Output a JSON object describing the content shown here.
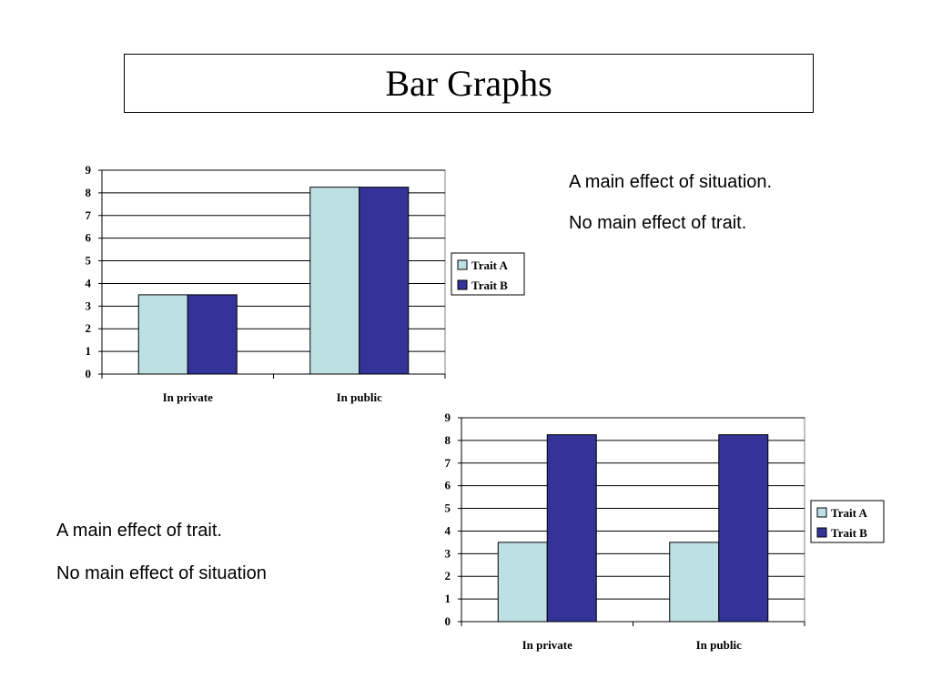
{
  "slide": {
    "title": "Bar Graphs",
    "caption_top_1": "A main effect of situation.",
    "caption_top_2": "No main effect of trait.",
    "caption_bottom_1": "A main effect of trait.",
    "caption_bottom_2": "No main effect of situation"
  },
  "colors": {
    "trait_a": "#bde0e3",
    "trait_b": "#333399"
  },
  "chart_data": [
    {
      "type": "bar",
      "categories": [
        "In private",
        "In public"
      ],
      "series": [
        {
          "name": "Trait A",
          "values": [
            3.5,
            8.25
          ]
        },
        {
          "name": "Trait B",
          "values": [
            3.5,
            8.25
          ]
        }
      ],
      "ylim": [
        0,
        9
      ],
      "yticks": [
        0,
        1,
        2,
        3,
        4,
        5,
        6,
        7,
        8,
        9
      ],
      "grid": true,
      "legend": "right"
    },
    {
      "type": "bar",
      "categories": [
        "In private",
        "In public"
      ],
      "series": [
        {
          "name": "Trait A",
          "values": [
            3.5,
            3.5
          ]
        },
        {
          "name": "Trait B",
          "values": [
            8.25,
            8.25
          ]
        }
      ],
      "ylim": [
        0,
        9
      ],
      "yticks": [
        0,
        1,
        2,
        3,
        4,
        5,
        6,
        7,
        8,
        9
      ],
      "grid": true,
      "legend": "right"
    }
  ]
}
